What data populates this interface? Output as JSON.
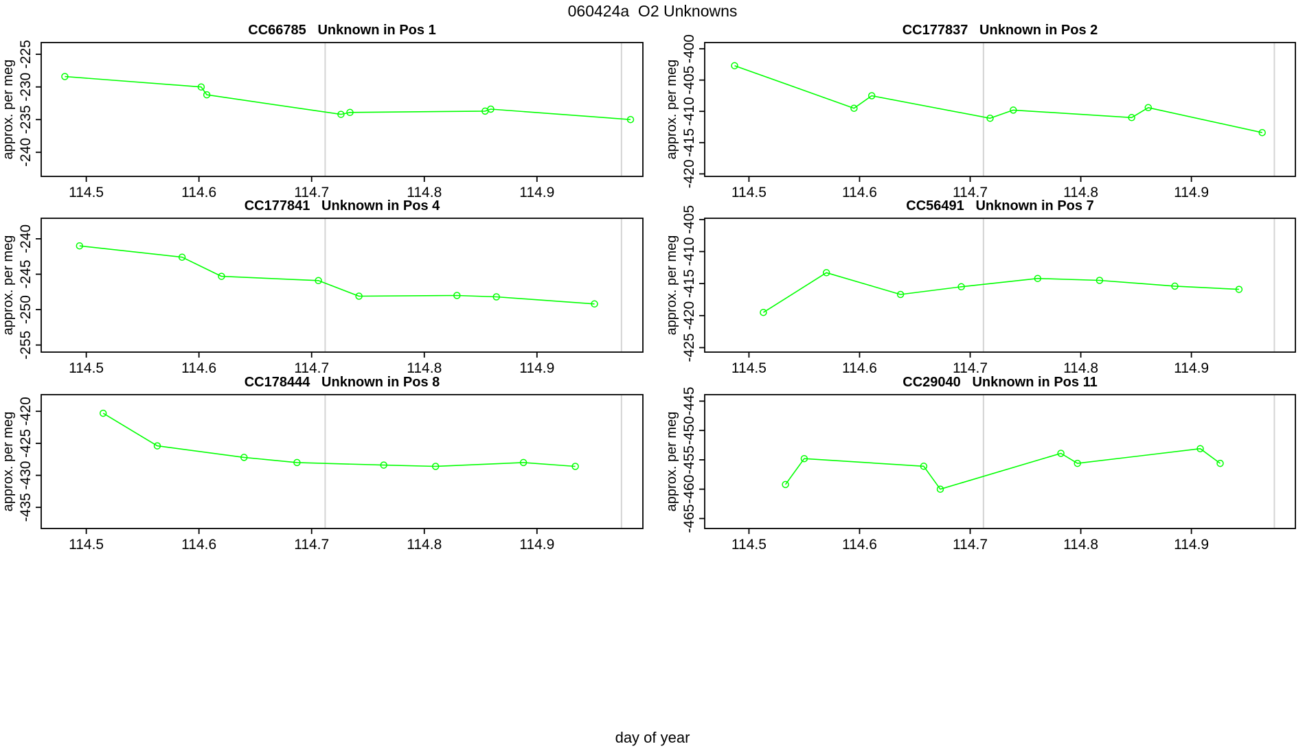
{
  "title": "060424a  O2 Unknowns",
  "xlabel": "day of year",
  "colors": {
    "series": "#00ff00",
    "marker": "#00ff00",
    "vline": "#d4d4d4",
    "axis": "#000000",
    "text": "#000000",
    "background": "#ffffff"
  },
  "chart_data": [
    {
      "type": "line",
      "title": "CC66785   Unknown in Pos 1",
      "sample_id": "CC66785",
      "position_label": "Unknown in Pos 1",
      "ylabel": "approx. per meg",
      "x": [
        114.481,
        114.602,
        114.607,
        114.726,
        114.734,
        114.854,
        114.859,
        114.983
      ],
      "y": [
        -228.4,
        -230.0,
        -231.2,
        -234.2,
        -233.9,
        -233.7,
        -233.4,
        -235.0
      ],
      "xlim": [
        114.46,
        114.994
      ],
      "ylim": [
        -243.7,
        -223.2
      ],
      "x_ticks": [
        114.5,
        114.6,
        114.7,
        114.8,
        114.9
      ],
      "y_ticks": [
        -225,
        -230,
        -235,
        -240
      ],
      "vlines": [
        114.712,
        114.975
      ],
      "marker": "open-circle",
      "grid": false,
      "legend": null
    },
    {
      "type": "line",
      "title": "CC177837   Unknown in Pos 2",
      "sample_id": "CC177837",
      "position_label": "Unknown in Pos 2",
      "ylabel": "approx. per meg",
      "x": [
        114.487,
        114.595,
        114.611,
        114.718,
        114.739,
        114.846,
        114.861,
        114.964
      ],
      "y": [
        -402.7,
        -409.5,
        -407.5,
        -411.1,
        -409.8,
        -411.0,
        -409.4,
        -413.4
      ],
      "xlim": [
        114.46,
        114.994
      ],
      "ylim": [
        -420.4,
        -399.0
      ],
      "x_ticks": [
        114.5,
        114.6,
        114.7,
        114.8,
        114.9
      ],
      "y_ticks": [
        -400,
        -405,
        -410,
        -415,
        -420
      ],
      "vlines": [
        114.712,
        114.975
      ],
      "marker": "open-circle",
      "grid": false,
      "legend": null
    },
    {
      "type": "line",
      "title": "CC177841   Unknown in Pos 4",
      "sample_id": "CC177841",
      "position_label": "Unknown in Pos 4",
      "ylabel": "approx. per meg",
      "x": [
        114.494,
        114.585,
        114.62,
        114.706,
        114.742,
        114.829,
        114.864,
        114.951
      ],
      "y": [
        -241.0,
        -242.6,
        -245.3,
        -245.9,
        -248.1,
        -248.0,
        -248.2,
        -249.2
      ],
      "xlim": [
        114.46,
        114.994
      ],
      "ylim": [
        -256.0,
        -237.1
      ],
      "x_ticks": [
        114.5,
        114.6,
        114.7,
        114.8,
        114.9
      ],
      "y_ticks": [
        -240,
        -245,
        -250,
        -255
      ],
      "vlines": [
        114.712,
        114.975
      ],
      "marker": "open-circle",
      "grid": false,
      "legend": null
    },
    {
      "type": "line",
      "title": "CC56491   Unknown in Pos 7",
      "sample_id": "CC56491",
      "position_label": "Unknown in Pos 7",
      "ylabel": "approx. per meg",
      "x": [
        114.513,
        114.57,
        114.637,
        114.692,
        114.761,
        114.817,
        114.885,
        114.943
      ],
      "y": [
        -419.5,
        -413.3,
        -416.7,
        -415.5,
        -414.2,
        -414.5,
        -415.4,
        -415.9
      ],
      "xlim": [
        114.46,
        114.994
      ],
      "ylim": [
        -425.7,
        -404.8
      ],
      "x_ticks": [
        114.5,
        114.6,
        114.7,
        114.8,
        114.9
      ],
      "y_ticks": [
        -405,
        -410,
        -415,
        -420,
        -425
      ],
      "vlines": [
        114.712,
        114.975
      ],
      "marker": "open-circle",
      "grid": false,
      "legend": null
    },
    {
      "type": "line",
      "title": "CC178444   Unknown in Pos 8",
      "sample_id": "CC178444",
      "position_label": "Unknown in Pos 8",
      "ylabel": "approx. per meg",
      "x": [
        114.515,
        114.563,
        114.64,
        114.687,
        114.764,
        114.81,
        114.888,
        114.934
      ],
      "y": [
        -420.3,
        -425.4,
        -427.2,
        -428.0,
        -428.4,
        -428.6,
        -428.0,
        -428.6
      ],
      "xlim": [
        114.46,
        114.994
      ],
      "ylim": [
        -438.3,
        -417.4
      ],
      "x_ticks": [
        114.5,
        114.6,
        114.7,
        114.8,
        114.9
      ],
      "y_ticks": [
        -420,
        -425,
        -430,
        -435
      ],
      "vlines": [
        114.712,
        114.975
      ],
      "marker": "open-circle",
      "grid": false,
      "legend": null
    },
    {
      "type": "line",
      "title": "CC29040   Unknown in Pos 11",
      "sample_id": "CC29040",
      "position_label": "Unknown in Pos 11",
      "ylabel": "approx. per meg",
      "x": [
        114.533,
        114.55,
        114.658,
        114.673,
        114.782,
        114.797,
        114.908,
        114.926
      ],
      "y": [
        -459.2,
        -454.8,
        -456.1,
        -460.0,
        -453.9,
        -455.6,
        -453.1,
        -455.6
      ],
      "xlim": [
        114.46,
        114.994
      ],
      "ylim": [
        -466.7,
        -443.9
      ],
      "x_ticks": [
        114.5,
        114.6,
        114.7,
        114.8,
        114.9
      ],
      "y_ticks": [
        -445,
        -450,
        -455,
        -460,
        -465
      ],
      "vlines": [
        114.712,
        114.975
      ],
      "marker": "open-circle",
      "grid": false,
      "legend": null
    }
  ]
}
